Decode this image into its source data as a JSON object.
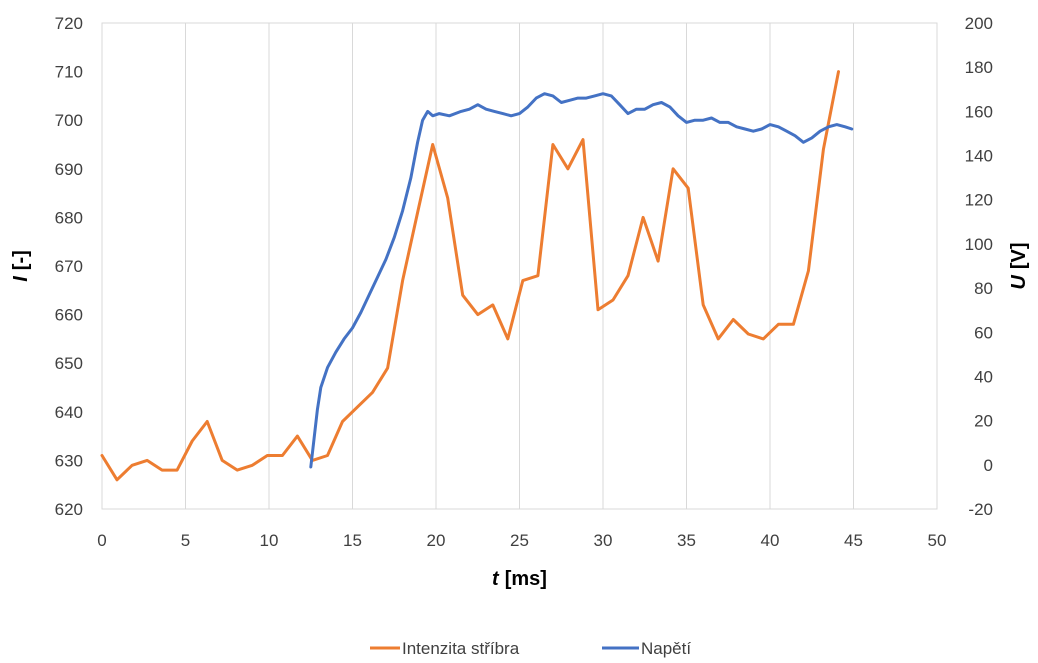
{
  "chart_data": {
    "type": "line",
    "title": "",
    "x_axis": {
      "label_var": "t",
      "label_unit": "[ms]",
      "range": [
        0,
        50
      ],
      "ticks": [
        "0",
        "5",
        "10",
        "15",
        "20",
        "25",
        "30",
        "35",
        "40",
        "45",
        "50"
      ]
    },
    "y_left": {
      "label_var": "I",
      "label_unit": "[-]",
      "range": [
        620,
        720
      ],
      "ticks": [
        "620",
        "630",
        "640",
        "650",
        "660",
        "670",
        "680",
        "690",
        "700",
        "710",
        "720"
      ]
    },
    "y_right": {
      "label_var": "U",
      "label_unit": "[V]",
      "range": [
        -20,
        200
      ],
      "ticks": [
        "-20",
        "0",
        "20",
        "40",
        "60",
        "80",
        "100",
        "120",
        "140",
        "160",
        "180",
        "200"
      ]
    },
    "grid": "vertical",
    "legend_position": "bottom",
    "series": [
      {
        "name": "Intenzita stříbra",
        "axis": "left",
        "color": "#ED7D31",
        "x": [
          0,
          0.9,
          1.8,
          2.7,
          3.6,
          4.5,
          5.4,
          6.3,
          7.2,
          8.1,
          9.0,
          9.9,
          10.8,
          11.7,
          12.6,
          13.5,
          14.4,
          15.3,
          16.2,
          17.1,
          18.0,
          18.9,
          19.8,
          20.7,
          21.6,
          22.5,
          23.4,
          24.3,
          25.2,
          26.1,
          27.0,
          27.9,
          28.8,
          29.7,
          30.6,
          31.5,
          32.4,
          33.3,
          34.2,
          35.1,
          36.0,
          36.9,
          37.8,
          38.7,
          39.6,
          40.5,
          41.4,
          42.3,
          43.2,
          44.1
        ],
        "y": [
          631,
          626,
          629,
          630,
          628,
          628,
          634,
          638,
          630,
          628,
          629,
          631,
          631,
          635,
          630,
          631,
          638,
          641,
          644,
          649,
          667,
          681,
          695,
          684,
          664,
          660,
          662,
          655,
          667,
          668,
          695,
          690,
          696,
          661,
          663,
          668,
          680,
          671,
          690,
          686,
          662,
          655,
          659,
          656,
          655,
          658,
          658,
          669,
          694,
          710
        ]
      },
      {
        "name": "Napětí",
        "axis": "right",
        "color": "#4472C4",
        "x": [
          12.5,
          12.7,
          12.9,
          13.1,
          13.5,
          14.0,
          14.5,
          15.0,
          15.5,
          16.0,
          16.5,
          17.0,
          17.5,
          18.0,
          18.5,
          18.9,
          19.2,
          19.5,
          19.8,
          20.2,
          20.8,
          21.5,
          22.0,
          22.5,
          23.0,
          23.5,
          24.0,
          24.5,
          25.0,
          25.5,
          26.0,
          26.5,
          27.0,
          27.5,
          28.0,
          28.5,
          29.0,
          29.5,
          30.0,
          30.5,
          31.0,
          31.5,
          32.0,
          32.5,
          33.0,
          33.5,
          34.0,
          34.5,
          35.0,
          35.5,
          36.0,
          36.5,
          37.0,
          37.5,
          38.0,
          38.5,
          39.0,
          39.5,
          40.0,
          40.5,
          41.0,
          41.5,
          42.0,
          42.5,
          43.0,
          43.5,
          44.0,
          44.5,
          44.9
        ],
        "y": [
          -1,
          12,
          25,
          35,
          44,
          51,
          57,
          62,
          69,
          77,
          85,
          93,
          103,
          115,
          130,
          146,
          156,
          160,
          158,
          159,
          158,
          160,
          161,
          163,
          161,
          160,
          159,
          158,
          159,
          162,
          166,
          168,
          167,
          164,
          165,
          166,
          166,
          167,
          168,
          167,
          163,
          159,
          161,
          161,
          163,
          164,
          162,
          158,
          155,
          156,
          156,
          157,
          155,
          155,
          153,
          152,
          151,
          152,
          154,
          153,
          151,
          149,
          146,
          148,
          151,
          153,
          154,
          153,
          152
        ]
      }
    ]
  }
}
